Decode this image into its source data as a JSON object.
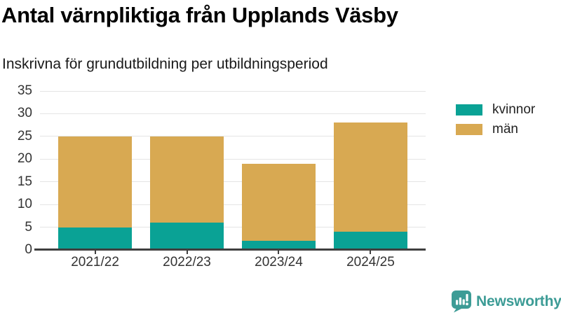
{
  "header": {
    "title": "Antal värnpliktiga från Upplands Väsby",
    "subtitle": "Inskrivna för grundutbildning per utbildningsperiod"
  },
  "chart_data": {
    "type": "bar",
    "stacked": true,
    "title": "Antal värnpliktiga från Upplands Väsby",
    "subtitle": "Inskrivna för grundutbildning per utbildningsperiod",
    "categories": [
      "2021/22",
      "2022/23",
      "2023/24",
      "2024/25"
    ],
    "series": [
      {
        "name": "kvinnor",
        "color": "#0aa295",
        "values": [
          5,
          6,
          2,
          4
        ]
      },
      {
        "name": "män",
        "color": "#d8a952",
        "values": [
          20,
          19,
          17,
          24
        ]
      }
    ],
    "stack_totals": [
      25,
      25,
      19,
      28
    ],
    "xlabel": "",
    "ylabel": "",
    "ylim": [
      0,
      35
    ],
    "yticks": [
      0,
      5,
      10,
      15,
      20,
      25,
      30,
      35
    ],
    "grid": true,
    "legend_position": "right"
  },
  "legend": {
    "items": [
      {
        "label": "kvinnor",
        "color": "#0aa295"
      },
      {
        "label": "män",
        "color": "#d8a952"
      }
    ]
  },
  "branding": {
    "name": "Newsworthy",
    "color": "#3d9c96"
  },
  "colors": {
    "background": "#ffffff",
    "title_text": "#000000",
    "subtitle_text": "#1a1a1a",
    "tick_label": "#333333",
    "grid_line": "#e4e4e4",
    "axis_line": "#3f3f3f"
  }
}
